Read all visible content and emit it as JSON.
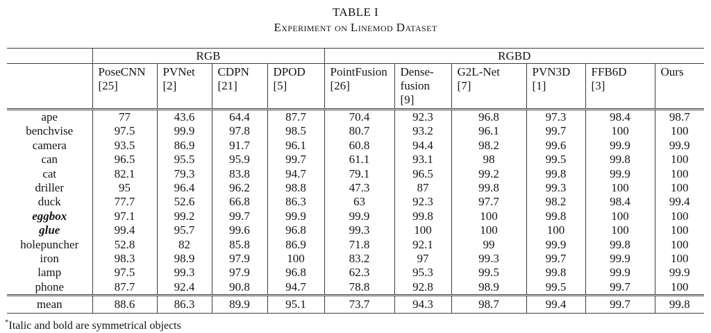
{
  "title": "TABLE I",
  "subtitle": "Experiment on Linemod Dataset",
  "footnote_marker": "*",
  "footnote_text": "Italic and bold are symmetrical objects",
  "table": {
    "group_headers": [
      {
        "label": "",
        "span": 1
      },
      {
        "label": "RGB",
        "span": 4
      },
      {
        "label": "RGBD",
        "span": 6
      }
    ],
    "columns": [
      {
        "name": "",
        "ref": ""
      },
      {
        "name": "PoseCNN",
        "ref": "[25]"
      },
      {
        "name": "PVNet",
        "ref": "[2]"
      },
      {
        "name": "CDPN",
        "ref": "[21]"
      },
      {
        "name": "DPOD",
        "ref": "[5]"
      },
      {
        "name": "PointFusion",
        "ref": "[26]"
      },
      {
        "name": "Dense-fusion",
        "ref": "[9]"
      },
      {
        "name": "G2L-Net",
        "ref": "[7]"
      },
      {
        "name": "PVN3D",
        "ref": "[1]"
      },
      {
        "name": "FFB6D",
        "ref": "[3]"
      },
      {
        "name": "Ours",
        "ref": ""
      }
    ],
    "rows": [
      {
        "label": "ape",
        "label_style": "",
        "values": [
          "77",
          "43.6",
          "64.4",
          "87.7",
          "70.4",
          "92.3",
          "96.8",
          "97.3",
          "98.4",
          "98.7"
        ],
        "bold": [
          9
        ]
      },
      {
        "label": "benchvise",
        "label_style": "",
        "values": [
          "97.5",
          "99.9",
          "97.8",
          "98.5",
          "80.7",
          "93.2",
          "96.1",
          "99.7",
          "100",
          "100"
        ],
        "bold": []
      },
      {
        "label": "camera",
        "label_style": "",
        "values": [
          "93.5",
          "86.9",
          "91.7",
          "96.1",
          "60.8",
          "94.4",
          "98.2",
          "99.6",
          "99.9",
          "99.9"
        ],
        "bold": []
      },
      {
        "label": "can",
        "label_style": "",
        "values": [
          "96.5",
          "95.5",
          "95.9",
          "99.7",
          "61.1",
          "93.1",
          "98",
          "99.5",
          "99.8",
          "100"
        ],
        "bold": [
          9
        ]
      },
      {
        "label": "cat",
        "label_style": "",
        "values": [
          "82.1",
          "79.3",
          "83.8",
          "94.7",
          "79.1",
          "96.5",
          "99.2",
          "99.8",
          "99.9",
          "100"
        ],
        "bold": [
          9
        ]
      },
      {
        "label": "driller",
        "label_style": "",
        "values": [
          "95",
          "96.4",
          "96.2",
          "98.8",
          "47.3",
          "87",
          "99.8",
          "99.3",
          "100",
          "100"
        ],
        "bold": []
      },
      {
        "label": "duck",
        "label_style": "",
        "values": [
          "77.7",
          "52.6",
          "66.8",
          "86.3",
          "63",
          "92.3",
          "97.7",
          "98.2",
          "98.4",
          "99.4"
        ],
        "bold": [
          9
        ]
      },
      {
        "label": "eggbox",
        "label_style": "bi",
        "values": [
          "97.1",
          "99.2",
          "99.7",
          "99.9",
          "99.9",
          "99.8",
          "100",
          "99.8",
          "100",
          "100"
        ],
        "bold": []
      },
      {
        "label": "glue",
        "label_style": "bi",
        "values": [
          "99.4",
          "95.7",
          "99.6",
          "96.8",
          "99.3",
          "100",
          "100",
          "100",
          "100",
          "100"
        ],
        "bold": []
      },
      {
        "label": "holepuncher",
        "label_style": "",
        "values": [
          "52.8",
          "82",
          "85.8",
          "86.9",
          "71.8",
          "92.1",
          "99",
          "99.9",
          "99.8",
          "100"
        ],
        "bold": [
          9
        ]
      },
      {
        "label": "iron",
        "label_style": "",
        "values": [
          "98.3",
          "98.9",
          "97.9",
          "100",
          "83.2",
          "97",
          "99.3",
          "99.7",
          "99.9",
          "100"
        ],
        "bold": [
          9
        ]
      },
      {
        "label": "lamp",
        "label_style": "",
        "values": [
          "97.5",
          "99.3",
          "97.9",
          "96.8",
          "62.3",
          "95.3",
          "99.5",
          "99.8",
          "99.9",
          "99.9"
        ],
        "bold": []
      },
      {
        "label": "phone",
        "label_style": "",
        "values": [
          "87.7",
          "92.4",
          "90.8",
          "94.7",
          "78.8",
          "92.8",
          "98.9",
          "99.5",
          "99.7",
          "100"
        ],
        "bold": [
          9
        ]
      }
    ],
    "summary_row": {
      "label": "mean",
      "values": [
        "88.6",
        "86.3",
        "89.9",
        "95.1",
        "73.7",
        "94.3",
        "98.7",
        "99.4",
        "99.7",
        "99.8"
      ],
      "bold": [
        9
      ]
    }
  }
}
